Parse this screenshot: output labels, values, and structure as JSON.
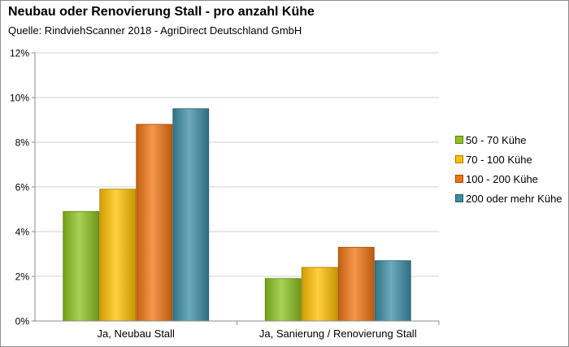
{
  "chart_data": {
    "type": "bar",
    "title": "Neubau oder Renovierung Stall - pro anzahl Kühe",
    "subtitle": "Quelle: RindviehScanner 2018 - AgriDirect Deutschland GmbH",
    "categories": [
      "Ja, Neubau Stall",
      "Ja, Sanierung / Renovierung Stall"
    ],
    "series": [
      {
        "name": "50 - 70 Kühe",
        "values": [
          4.9,
          1.9
        ],
        "color": "#8cc21f"
      },
      {
        "name": "70 - 100 Kühe",
        "values": [
          5.9,
          2.4
        ],
        "color": "#ffc000"
      },
      {
        "name": "100 - 200 Kühe",
        "values": [
          8.8,
          3.3
        ],
        "color": "#f07412"
      },
      {
        "name": "200 oder mehr Kühe",
        "values": [
          9.5,
          2.7
        ],
        "color": "#3b8ea5"
      }
    ],
    "ylim": [
      0,
      12
    ],
    "yticks": [
      0,
      2,
      4,
      6,
      8,
      10,
      12
    ],
    "yunit": "%",
    "xlabel": "",
    "ylabel": "",
    "grid": true,
    "legend_position": "right"
  }
}
